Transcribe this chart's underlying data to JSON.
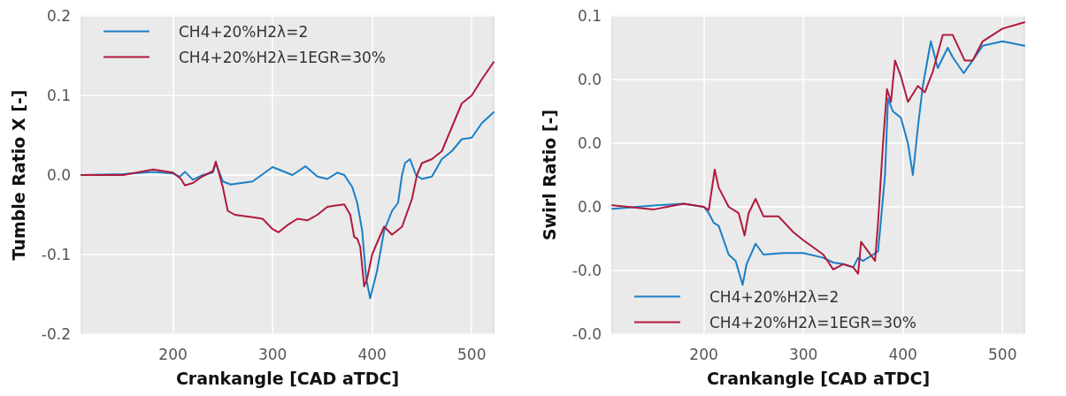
{
  "chart_data": [
    {
      "type": "line",
      "xlabel": "Crankangle [CAD aTDC]",
      "ylabel": "Tumble Ratio X [-]",
      "xlim": [
        108,
        522
      ],
      "xticks": [
        200,
        300,
        400,
        500
      ],
      "ylim": [
        -0.2,
        0.2
      ],
      "yticks": [
        -0.2,
        -0.1,
        {
          "value": 0,
          "label": "0.0"
        },
        0.1,
        0.2
      ],
      "grid": true,
      "legend": "top left",
      "series": [
        {
          "name": "CH4+20%H2λ=2",
          "color": "#1a7fc6",
          "x": [
            108,
            150,
            180,
            200,
            207,
            212,
            220,
            230,
            240,
            243,
            250,
            258,
            280,
            300,
            310,
            320,
            333,
            345,
            355,
            365,
            372,
            380,
            385,
            390,
            394,
            398,
            405,
            412,
            420,
            426,
            430,
            433,
            438,
            444,
            450,
            460,
            470,
            480,
            490,
            500,
            510,
            522
          ],
          "values": [
            0,
            0.001,
            0.004,
            0.002,
            -0.002,
            0.004,
            -0.006,
            0,
            0.003,
            0.015,
            -0.008,
            -0.012,
            -0.008,
            0.01,
            0.005,
            0,
            0.011,
            -0.002,
            -0.005,
            0.003,
            0,
            -0.015,
            -0.035,
            -0.07,
            -0.13,
            -0.155,
            -0.12,
            -0.07,
            -0.045,
            -0.035,
            0,
            0.015,
            0.02,
            0,
            -0.005,
            -0.002,
            0.02,
            0.03,
            0.045,
            0.047,
            0.065,
            0.079
          ]
        },
        {
          "name": "CH4+20%H2λ=1EGR=30%",
          "color": "#b01a3c",
          "x": [
            108,
            150,
            180,
            200,
            208,
            212,
            220,
            228,
            240,
            243,
            250,
            255,
            262,
            280,
            290,
            300,
            306,
            315,
            325,
            335,
            345,
            355,
            365,
            372,
            378,
            382,
            385,
            388,
            392,
            395,
            400,
            405,
            412,
            420,
            430,
            440,
            445,
            450,
            460,
            470,
            480,
            490,
            500,
            510,
            522
          ],
          "values": [
            0,
            0,
            0.007,
            0.003,
            -0.005,
            -0.013,
            -0.01,
            -0.003,
            0.005,
            0.017,
            -0.015,
            -0.045,
            -0.05,
            -0.053,
            -0.055,
            -0.068,
            -0.072,
            -0.063,
            -0.055,
            -0.057,
            -0.05,
            -0.04,
            -0.038,
            -0.037,
            -0.05,
            -0.078,
            -0.08,
            -0.09,
            -0.14,
            -0.13,
            -0.1,
            -0.085,
            -0.065,
            -0.075,
            -0.065,
            -0.03,
            0,
            0.015,
            0.02,
            0.03,
            0.06,
            0.09,
            0.1,
            0.12,
            0.142
          ]
        }
      ]
    },
    {
      "type": "line",
      "xlabel": "Crankangle [CAD aTDC]",
      "ylabel": "Swirl Ratio [-]",
      "xlim": [
        108,
        522
      ],
      "xticks": [
        200,
        300,
        400,
        500
      ],
      "ylim": [
        -0.04,
        0.06
      ],
      "yticks": [
        {
          "value": -0.04,
          "label": "-0.0"
        },
        {
          "value": -0.02,
          "label": "-0.0"
        },
        {
          "value": 0.0,
          "label": "0.0"
        },
        {
          "value": 0.02,
          "label": "0.0"
        },
        {
          "value": 0.04,
          "label": "0.0"
        },
        {
          "value": 0.06,
          "label": "0.1"
        }
      ],
      "grid": true,
      "legend": "bottom left",
      "series": [
        {
          "name": "CH4+20%H2λ=2",
          "color": "#1a7fc6",
          "x": [
            108,
            150,
            180,
            200,
            205,
            210,
            215,
            225,
            232,
            239,
            243,
            252,
            260,
            280,
            300,
            320,
            330,
            340,
            350,
            355,
            360,
            370,
            375,
            378,
            382,
            385,
            390,
            398,
            405,
            410,
            415,
            420,
            428,
            435,
            445,
            450,
            461,
            470,
            480,
            500,
            522
          ],
          "values": [
            -0.0006,
            0.0004,
            0.001,
            0,
            -0.002,
            -0.005,
            -0.006,
            -0.015,
            -0.017,
            -0.0245,
            -0.018,
            -0.0116,
            -0.015,
            -0.0145,
            -0.0145,
            -0.016,
            -0.0175,
            -0.018,
            -0.019,
            -0.016,
            -0.017,
            -0.015,
            -0.014,
            -0.004,
            0.01,
            0.034,
            0.03,
            0.028,
            0.02,
            0.01,
            0.025,
            0.038,
            0.052,
            0.0436,
            0.05,
            0.047,
            0.042,
            0.046,
            0.0506,
            0.052,
            0.0506
          ]
        },
        {
          "name": "CH4+20%H2λ=1EGR=30%",
          "color": "#b01a3c",
          "x": [
            108,
            150,
            180,
            200,
            205,
            211,
            215,
            225,
            235,
            241,
            245,
            252,
            260,
            275,
            290,
            300,
            320,
            330,
            340,
            350,
            355,
            358,
            365,
            372,
            375,
            380,
            384,
            388,
            392,
            398,
            405,
            415,
            422,
            430,
            440,
            450,
            462,
            470,
            480,
            500,
            522
          ],
          "values": [
            0.0005,
            -0.0008,
            0.001,
            0,
            -0.001,
            0.0117,
            0.006,
            0,
            -0.002,
            -0.009,
            -0.002,
            0.0025,
            -0.003,
            -0.003,
            -0.008,
            -0.0105,
            -0.015,
            -0.0197,
            -0.018,
            -0.019,
            -0.021,
            -0.011,
            -0.014,
            -0.017,
            -0.005,
            0.02,
            0.037,
            0.033,
            0.046,
            0.041,
            0.033,
            0.038,
            0.036,
            0.0425,
            0.054,
            0.054,
            0.046,
            0.046,
            0.052,
            0.056,
            0.058
          ]
        }
      ]
    }
  ]
}
